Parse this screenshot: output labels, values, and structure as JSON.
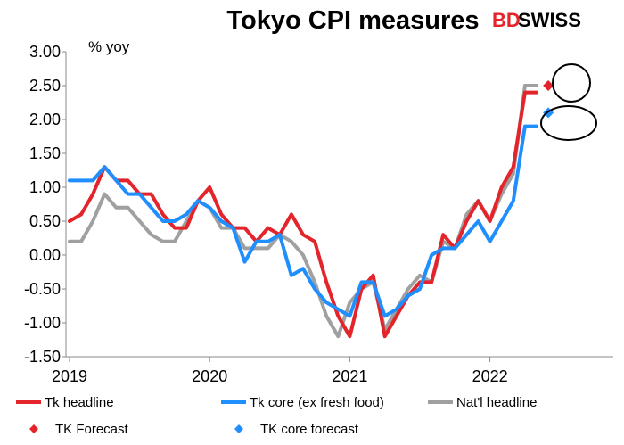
{
  "chart_data": {
    "type": "line",
    "title": "Tokyo CPI measures",
    "unit_label": "% yoy",
    "brand": {
      "part1": "BD",
      "part2": "SWISS",
      "accent": "#e3242b"
    },
    "ylim": [
      -1.5,
      3.0
    ],
    "y_ticks": [
      "3.00",
      "2.50",
      "2.00",
      "1.50",
      "1.00",
      "0.50",
      "0.00",
      "-0.50",
      "-1.00",
      "-1.50"
    ],
    "x_ticks": [
      "2019",
      "2020",
      "2021",
      "2022"
    ],
    "grid": false,
    "legend_position": "bottom",
    "x_start": "2019-01",
    "x_end": "2022-06",
    "series": [
      {
        "name": "Tk headline",
        "color": "#e3242b",
        "x": [
          "2019-01",
          "2019-02",
          "2019-03",
          "2019-04",
          "2019-05",
          "2019-06",
          "2019-07",
          "2019-08",
          "2019-09",
          "2019-10",
          "2019-11",
          "2019-12",
          "2020-01",
          "2020-02",
          "2020-03",
          "2020-04",
          "2020-05",
          "2020-06",
          "2020-07",
          "2020-08",
          "2020-09",
          "2020-10",
          "2020-11",
          "2020-12",
          "2021-01",
          "2021-02",
          "2021-03",
          "2021-04",
          "2021-05",
          "2021-06",
          "2021-07",
          "2021-08",
          "2021-09",
          "2021-10",
          "2021-11",
          "2021-12",
          "2022-01",
          "2022-02",
          "2022-03",
          "2022-04",
          "2022-05"
        ],
        "values": [
          0.5,
          0.6,
          0.9,
          1.3,
          1.1,
          1.1,
          0.9,
          0.9,
          0.6,
          0.4,
          0.4,
          0.8,
          1.0,
          0.6,
          0.4,
          0.4,
          0.2,
          0.4,
          0.3,
          0.6,
          0.3,
          0.2,
          -0.4,
          -0.9,
          -1.2,
          -0.5,
          -0.3,
          -1.2,
          -0.9,
          -0.6,
          -0.4,
          -0.4,
          0.3,
          0.1,
          0.5,
          0.8,
          0.5,
          1.0,
          1.3,
          2.4,
          2.4
        ]
      },
      {
        "name": "Tk core (ex fresh food)",
        "color": "#1f8fff",
        "x": [
          "2019-01",
          "2019-02",
          "2019-03",
          "2019-04",
          "2019-05",
          "2019-06",
          "2019-07",
          "2019-08",
          "2019-09",
          "2019-10",
          "2019-11",
          "2019-12",
          "2020-01",
          "2020-02",
          "2020-03",
          "2020-04",
          "2020-05",
          "2020-06",
          "2020-07",
          "2020-08",
          "2020-09",
          "2020-10",
          "2020-11",
          "2020-12",
          "2021-01",
          "2021-02",
          "2021-03",
          "2021-04",
          "2021-05",
          "2021-06",
          "2021-07",
          "2021-08",
          "2021-09",
          "2021-10",
          "2021-11",
          "2021-12",
          "2022-01",
          "2022-02",
          "2022-03",
          "2022-04",
          "2022-05"
        ],
        "values": [
          1.1,
          1.1,
          1.1,
          1.3,
          1.1,
          0.9,
          0.9,
          0.7,
          0.5,
          0.5,
          0.6,
          0.8,
          0.7,
          0.5,
          0.4,
          -0.1,
          0.2,
          0.2,
          0.3,
          -0.3,
          -0.2,
          -0.5,
          -0.7,
          -0.8,
          -0.9,
          -0.4,
          -0.4,
          -0.9,
          -0.8,
          -0.6,
          -0.5,
          0.0,
          0.1,
          0.1,
          0.3,
          0.5,
          0.2,
          0.5,
          0.8,
          1.9,
          1.9
        ]
      },
      {
        "name": "Nat'l headline",
        "color": "#a0a0a0",
        "x": [
          "2019-01",
          "2019-02",
          "2019-03",
          "2019-04",
          "2019-05",
          "2019-06",
          "2019-07",
          "2019-08",
          "2019-09",
          "2019-10",
          "2019-11",
          "2019-12",
          "2020-01",
          "2020-02",
          "2020-03",
          "2020-04",
          "2020-05",
          "2020-06",
          "2020-07",
          "2020-08",
          "2020-09",
          "2020-10",
          "2020-11",
          "2020-12",
          "2021-01",
          "2021-02",
          "2021-03",
          "2021-04",
          "2021-05",
          "2021-06",
          "2021-07",
          "2021-08",
          "2021-09",
          "2021-10",
          "2021-11",
          "2021-12",
          "2022-01",
          "2022-02",
          "2022-03",
          "2022-04",
          "2022-05"
        ],
        "values": [
          0.2,
          0.2,
          0.5,
          0.9,
          0.7,
          0.7,
          0.5,
          0.3,
          0.2,
          0.2,
          0.5,
          0.8,
          0.7,
          0.4,
          0.4,
          0.1,
          0.1,
          0.1,
          0.3,
          0.2,
          0.0,
          -0.4,
          -0.9,
          -1.2,
          -0.7,
          -0.5,
          -0.4,
          -1.1,
          -0.8,
          -0.5,
          -0.3,
          -0.4,
          0.2,
          0.1,
          0.6,
          0.8,
          0.5,
          0.9,
          1.2,
          2.5,
          2.5
        ]
      },
      {
        "name": "TK Forecast",
        "color": "#e3242b",
        "marker": "diamond",
        "x": [
          "2022-06"
        ],
        "values": [
          2.5
        ]
      },
      {
        "name": "TK core forecast",
        "color": "#1f8fff",
        "marker": "diamond",
        "x": [
          "2022-06"
        ],
        "values": [
          2.1
        ]
      }
    ]
  }
}
